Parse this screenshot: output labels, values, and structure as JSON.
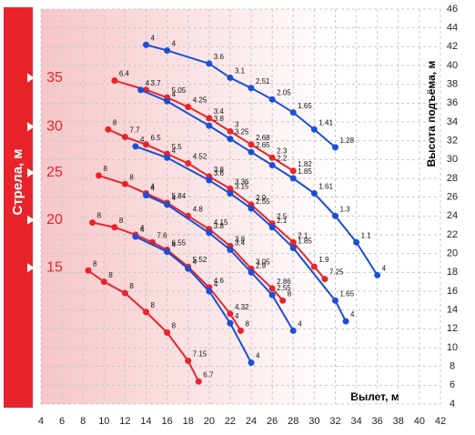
{
  "chart_data": {
    "type": "line",
    "side_title": "Стрела, м",
    "x_label": "Вылет, м",
    "y_label": "Высота подъёма, м",
    "xlim": [
      4,
      42
    ],
    "ylim": [
      4,
      46
    ],
    "xticks": [
      4,
      6,
      8,
      10,
      12,
      14,
      16,
      18,
      20,
      22,
      24,
      26,
      28,
      30,
      32,
      34,
      36,
      38,
      40,
      42
    ],
    "yticks": [
      4,
      6,
      8,
      10,
      12,
      14,
      16,
      18,
      20,
      22,
      24,
      26,
      28,
      30,
      32,
      34,
      36,
      38,
      40,
      42,
      44,
      46
    ],
    "grid": true,
    "series": [
      {
        "color": "#1a4fd6",
        "x": [
          14,
          16,
          20,
          22,
          24,
          26,
          28,
          30,
          32
        ],
        "y": [
          42.2,
          41.6,
          40.2,
          38.7,
          37.6,
          36.4,
          35,
          33.2,
          31.3
        ],
        "loads": [
          4,
          4,
          3.6,
          3.1,
          2.51,
          2.05,
          1.65,
          1.41,
          1.28
        ]
      },
      {
        "name": 35,
        "color": "#e8242a",
        "x": [
          11,
          14,
          16,
          18,
          20,
          22,
          24,
          26,
          28
        ],
        "y": [
          38.4,
          37.4,
          36.6,
          35.6,
          34.4,
          33,
          31.6,
          30.2,
          28.8
        ],
        "loads": [
          6.4,
          3.7,
          5.05,
          4.25,
          3.4,
          3,
          2.68,
          2.3,
          1.82
        ]
      },
      {
        "color": "#1a4fd6",
        "x": [
          13.5,
          16,
          20,
          22,
          24,
          26,
          28,
          30,
          32,
          34,
          36
        ],
        "y": [
          37.4,
          36.2,
          33.6,
          32.2,
          30.8,
          29.4,
          28,
          26.4,
          24,
          21.2,
          17.7
        ],
        "loads": [
          4,
          4,
          3.8,
          3.25,
          2.65,
          2.2,
          1.85,
          1.61,
          1.3,
          1.1,
          4
        ]
      },
      {
        "name": 30,
        "color": "#e8242a",
        "x": [
          10.4,
          12,
          14,
          16,
          18,
          20,
          22,
          24,
          26,
          28,
          30,
          31
        ],
        "y": [
          33.2,
          32.4,
          31.6,
          30.6,
          29.6,
          28.2,
          26.9,
          25.2,
          23.2,
          21.2,
          18.6,
          17.3
        ],
        "loads": [
          8,
          7.7,
          6.5,
          5.5,
          4.52,
          3.8,
          3.36,
          2.9,
          2.5,
          2.1,
          1.9,
          7.25
        ]
      },
      {
        "color": "#1a4fd6",
        "x": [
          13,
          16,
          20,
          22,
          24,
          26,
          28,
          32,
          33
        ],
        "y": [
          31.4,
          30.2,
          27.8,
          26.4,
          24.8,
          22.8,
          20.6,
          15,
          12.8
        ],
        "loads": [
          4,
          4,
          3.6,
          3.15,
          2.55,
          2.1,
          1.85,
          1.65,
          4
        ]
      },
      {
        "name": 25,
        "color": "#e8242a",
        "x": [
          9.5,
          12,
          14,
          16,
          18,
          20,
          22,
          24,
          26,
          27
        ],
        "y": [
          28.3,
          27.4,
          26.4,
          25.4,
          24,
          22.6,
          20.8,
          18.4,
          16.3,
          15
        ],
        "loads": [
          8,
          8,
          4,
          5.84,
          4.8,
          4.15,
          3.8,
          3.05,
          2.86,
          8
        ]
      },
      {
        "color": "#1a4fd6",
        "x": [
          14,
          16,
          20,
          22,
          24,
          26,
          28
        ],
        "y": [
          26.2,
          25.2,
          22.2,
          20.4,
          18,
          15.6,
          11.8
        ],
        "loads": [
          4,
          4,
          3.8,
          3.4,
          2.9,
          2.55,
          4
        ]
      },
      {
        "name": 20,
        "color": "#e8242a",
        "x": [
          8.9,
          11,
          13,
          14.6,
          16,
          18,
          20,
          22,
          23
        ],
        "y": [
          23.3,
          22.8,
          22,
          21.2,
          20.4,
          18.6,
          16.4,
          13.6,
          11.8
        ],
        "loads": [
          8,
          8,
          4,
          7.6,
          6.55,
          5.52,
          4.6,
          4.32,
          8
        ]
      },
      {
        "color": "#1a4fd6",
        "x": [
          13,
          16,
          18,
          20,
          22,
          24
        ],
        "y": [
          21.8,
          20.2,
          18.4,
          16,
          12.6,
          8.4
        ],
        "loads": [
          4,
          4,
          4,
          4,
          4,
          4
        ]
      },
      {
        "name": 15,
        "color": "#e8242a",
        "x": [
          8.5,
          10,
          12,
          14,
          16,
          18,
          19
        ],
        "y": [
          18.2,
          17,
          15.8,
          13.8,
          11.6,
          8.6,
          6.4
        ],
        "loads": [
          8,
          8,
          8,
          8,
          8,
          7.15,
          6.7
        ]
      }
    ]
  }
}
